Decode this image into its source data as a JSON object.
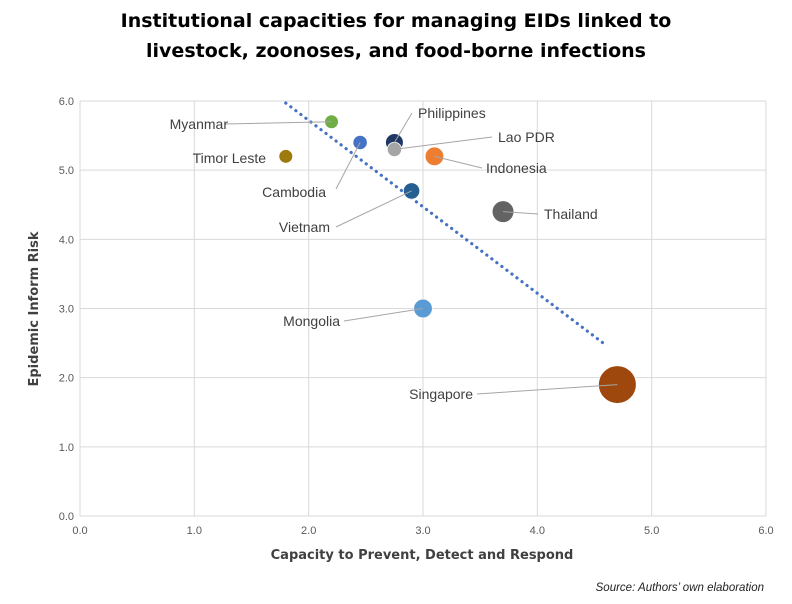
{
  "chart_data": {
    "type": "bubble",
    "title_lines": [
      "Institutional capacities for managing EIDs linked to",
      "livestock, zoonoses, and food-borne infections"
    ],
    "xlabel": "Capacity to Prevent, Detect and Respond",
    "ylabel": "Epidemic Inform Risk",
    "xlim": [
      0,
      6
    ],
    "ylim": [
      0,
      6
    ],
    "x_ticks": [
      "0.0",
      "1.0",
      "2.0",
      "3.0",
      "4.0",
      "5.0",
      "6.0"
    ],
    "y_ticks": [
      "0.0",
      "1.0",
      "2.0",
      "3.0",
      "4.0",
      "5.0",
      "6.0"
    ],
    "grid": true,
    "trendline": {
      "style": "dotted",
      "color": "#4472C4",
      "x": [
        1.8,
        4.6
      ],
      "y": [
        5.97,
        2.47
      ]
    },
    "points": [
      {
        "label": "Myanmar",
        "x": 2.2,
        "y": 5.7,
        "size": 1.2,
        "color": "#70AD47"
      },
      {
        "label": "Timor Leste",
        "x": 1.8,
        "y": 5.2,
        "size": 1.2,
        "color": "#9C7A0E"
      },
      {
        "label": "Cambodia",
        "x": 2.45,
        "y": 5.4,
        "size": 1.3,
        "color": "#4472C4"
      },
      {
        "label": "Lao PDR",
        "x": 2.75,
        "y": 5.3,
        "size": 1.3,
        "color": "#A5A5A5"
      },
      {
        "label": "Philippines",
        "x": 2.75,
        "y": 5.4,
        "size": 2.0,
        "color": "#203864"
      },
      {
        "label": "Indonesia",
        "x": 3.1,
        "y": 5.2,
        "size": 2.2,
        "color": "#ED7D31"
      },
      {
        "label": "Vietnam",
        "x": 2.9,
        "y": 4.7,
        "size": 1.7,
        "color": "#255E91"
      },
      {
        "label": "Thailand",
        "x": 3.7,
        "y": 4.4,
        "size": 3.0,
        "color": "#636363"
      },
      {
        "label": "Mongolia",
        "x": 3.0,
        "y": 3.0,
        "size": 2.2,
        "color": "#5B9BD5"
      },
      {
        "label": "Singapore",
        "x": 4.7,
        "y": 1.9,
        "size": 9.0,
        "color": "#9E480E"
      }
    ],
    "source": "Source: Authors’ own elaboration"
  }
}
